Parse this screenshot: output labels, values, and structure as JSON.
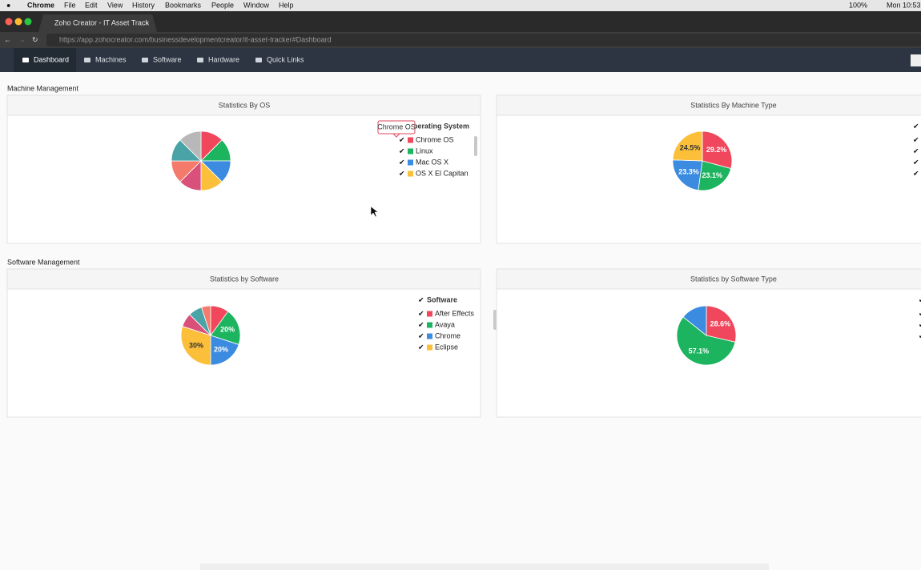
{
  "menu_bar": {
    "app": "Chrome",
    "items": [
      "File",
      "Edit",
      "View",
      "History",
      "Bookmarks",
      "People",
      "Window",
      "Help"
    ],
    "battery": "100%",
    "clock": "Mon 10:53"
  },
  "browser": {
    "tab_title": "Zoho Creator - IT Asset Track",
    "url": "https://app.zohocreator.com/businessdevelopmentcreator/it-asset-tracker#Dashboard"
  },
  "nav": {
    "items": [
      "Dashboard",
      "Machines",
      "Software",
      "Hardware",
      "Quick Links"
    ]
  },
  "sections": [
    {
      "title": "Machine Management"
    },
    {
      "title": "Software Management"
    }
  ],
  "tooltip": "Chrome OS",
  "chart_data": [
    {
      "type": "pie",
      "title": "Statistics By OS",
      "legend_title": "Operating System",
      "categories": [
        "Chrome OS",
        "Linux",
        "Mac OS X",
        "OS X El Capitan",
        null,
        null,
        null,
        null
      ],
      "values": [
        12.5,
        12.5,
        12.5,
        12.5,
        12.5,
        12.5,
        12.5,
        12.5
      ],
      "colors": [
        "#f0475c",
        "#1cb45f",
        "#3b8be0",
        "#fbbf3a",
        "#d9507a",
        "#f47a6b",
        "#4aa3a6",
        "#b8b8b8"
      ]
    },
    {
      "type": "pie",
      "title": "Statistics By Machine Type",
      "categories": [
        null,
        null,
        null,
        null
      ],
      "values": [
        29.2,
        23.1,
        23.3,
        24.5
      ],
      "value_labels": [
        "29.2%",
        "23.1%",
        "23.3%",
        "24.5%"
      ],
      "colors": [
        "#f0475c",
        "#1cb45f",
        "#3b8be0",
        "#fbbf3a"
      ]
    },
    {
      "type": "pie",
      "title": "Statistics by Software",
      "legend_title": "Software",
      "categories": [
        "After Effects",
        "Avaya",
        "Chrome",
        "Eclipse",
        null,
        null,
        null
      ],
      "values": [
        10,
        20,
        20,
        30,
        7.5,
        7.5,
        5
      ],
      "value_labels": [
        null,
        "20%",
        "20%",
        "30%",
        null,
        null,
        null
      ],
      "colors": [
        "#f0475c",
        "#1cb45f",
        "#3b8be0",
        "#fbbf3a",
        "#d9507a",
        "#4aa3a6",
        "#f47a6b"
      ]
    },
    {
      "type": "pie",
      "title": "Statistics by Software Type",
      "categories": [
        null,
        null,
        null
      ],
      "values": [
        28.6,
        57.1,
        14.3
      ],
      "value_labels": [
        "28.6%",
        "57.1%",
        null
      ],
      "colors": [
        "#f0475c",
        "#1cb45f",
        "#3b8be0"
      ]
    }
  ]
}
